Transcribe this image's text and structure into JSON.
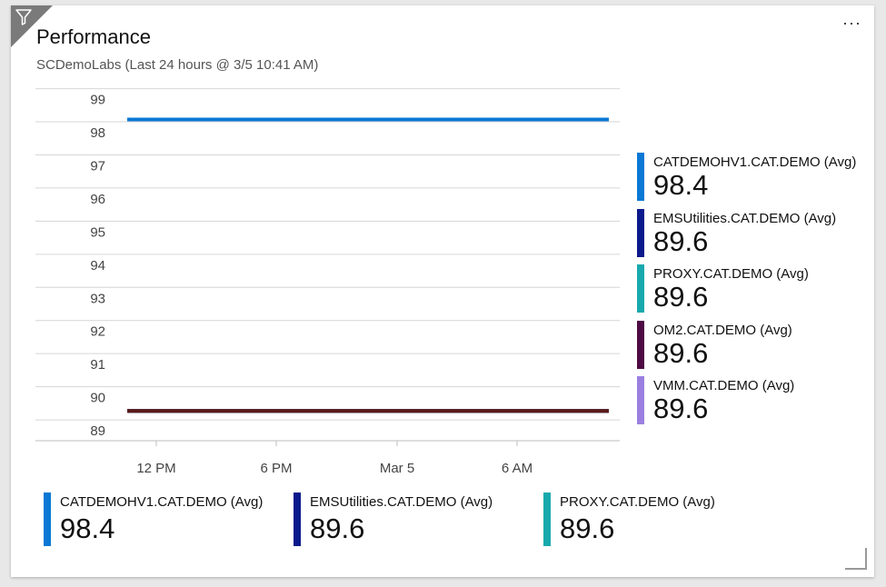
{
  "tile": {
    "title": "Performance",
    "subtitle": "SCDemoLabs (Last 24 hours @ 3/5 10:41 AM)",
    "more_label": "···"
  },
  "icons": {
    "filter": "filter-icon",
    "more": "more-options-icon",
    "resize": "resize-handle-icon"
  },
  "colors": {
    "series_1": "#0a78d4",
    "series_2": "#0a1a8c",
    "series_3": "#17a9ad",
    "series_4": "#4e0a45",
    "series_5": "#9b7fe0",
    "overlap_line": "#5a1a1a"
  },
  "chart_data": {
    "type": "line",
    "x_ticks": [
      "12 PM",
      "6 PM",
      "Mar 5",
      "6 AM"
    ],
    "y_ticks": [
      "99",
      "98",
      "97",
      "96",
      "95",
      "94",
      "93",
      "92",
      "91",
      "90",
      "89"
    ],
    "ylim": [
      88.7,
      99.4
    ],
    "grid": true,
    "legend_placement": "right",
    "series": [
      {
        "name": "CATDEMOHV1.CAT.DEMO (Avg)",
        "values": [
          98.4,
          98.4,
          98.4,
          98.4,
          98.4
        ]
      },
      {
        "name": "EMSUtilities.CAT.DEMO (Avg)",
        "values": [
          89.6,
          89.6,
          89.6,
          89.6,
          89.6
        ]
      },
      {
        "name": "PROXY.CAT.DEMO (Avg)",
        "values": [
          89.6,
          89.6,
          89.6,
          89.6,
          89.6
        ]
      },
      {
        "name": "OM2.CAT.DEMO (Avg)",
        "values": [
          89.6,
          89.6,
          89.6,
          89.6,
          89.6
        ]
      },
      {
        "name": "VMM.CAT.DEMO (Avg)",
        "values": [
          89.6,
          89.6,
          89.6,
          89.6,
          89.6
        ]
      }
    ]
  },
  "legend_right": [
    {
      "name": "CATDEMOHV1.CAT.DEMO (Avg)",
      "value": "98.4",
      "color": "#0a78d4"
    },
    {
      "name": "EMSUtilities.CAT.DEMO (Avg)",
      "value": "89.6",
      "color": "#0a1a8c"
    },
    {
      "name": "PROXY.CAT.DEMO (Avg)",
      "value": "89.6",
      "color": "#17a9ad"
    },
    {
      "name": "OM2.CAT.DEMO (Avg)",
      "value": "89.6",
      "color": "#4e0a45"
    },
    {
      "name": "VMM.CAT.DEMO (Avg)",
      "value": "89.6",
      "color": "#9b7fe0"
    }
  ],
  "legend_bottom": [
    {
      "name": "CATDEMOHV1.CAT.DEMO (Avg)",
      "value": "98.4",
      "color": "#0a78d4"
    },
    {
      "name": "EMSUtilities.CAT.DEMO (Avg)",
      "value": "89.6",
      "color": "#0a1a8c"
    },
    {
      "name": "PROXY.CAT.DEMO (Avg)",
      "value": "89.6",
      "color": "#17a9ad"
    }
  ]
}
